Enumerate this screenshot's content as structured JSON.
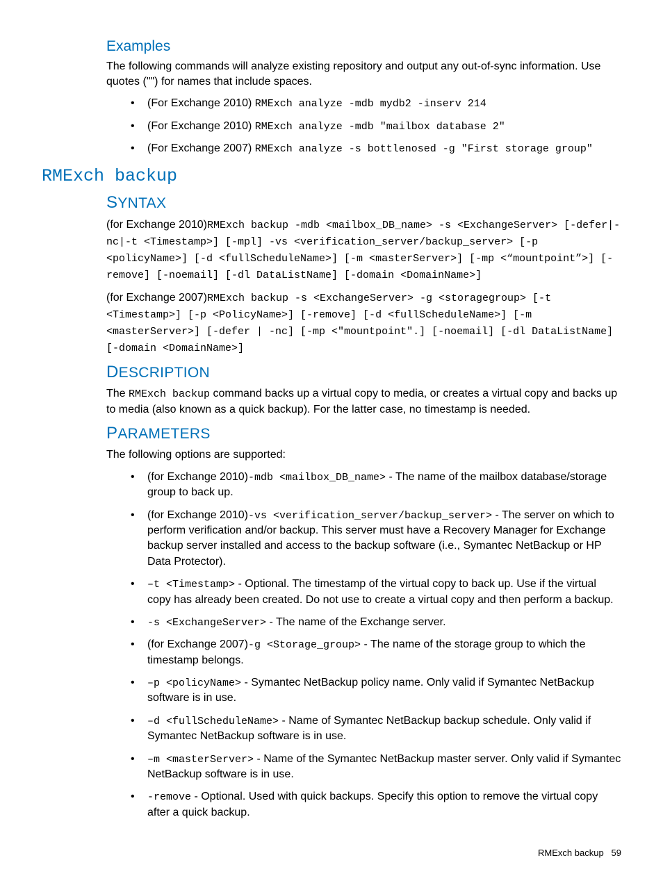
{
  "headings": {
    "examples": "Examples",
    "cmd_title": "RMExch backup",
    "syntax": "Syntax",
    "description": "Description",
    "parameters": "Parameters"
  },
  "examples": {
    "intro": "The following commands will analyze existing repository and output any out-of-sync information. Use quotes (\"\") for names that include spaces.",
    "items": [
      {
        "prefix": "(For Exchange 2010) ",
        "code": "RMExch analyze -mdb mydb2 -inserv 214"
      },
      {
        "prefix": "(For Exchange 2010) ",
        "code": "RMExch analyze -mdb \"mailbox database 2\""
      },
      {
        "prefix": "(For Exchange 2007) ",
        "code": "RMExch analyze -s bottlenosed -g \"First storage group\""
      }
    ]
  },
  "syntax": {
    "block1_prefix": "(for Exchange 2010)",
    "block1_code": "RMExch backup -mdb <mailbox_DB_name> -s <ExchangeServer> [-defer|-nc|-t <Timestamp>] [-mpl] -vs <verification_server/backup_server> [-p <policyName>] [-d <fullScheduleName>] [-m <masterServer>] [-mp <“mountpoint”>] [-remove] [-noemail] [-dl DataListName] [-domain <DomainName>]",
    "block2_prefix": "(for Exchange 2007)",
    "block2_code": "RMExch backup -s <ExchangeServer> -g <storagegroup> [-t <Timestamp>] [-p <PolicyName>] [-remove] [-d <fullScheduleName>] [-m <masterServer>] [-defer | -nc] [-mp <\"mountpoint\".] [-noemail] [-dl DataListName] [-domain <DomainName>]"
  },
  "description": {
    "pre": "The ",
    "code": "RMExch backup",
    "post": " command backs up a virtual copy to media, or creates a virtual copy and backs up to media (also known as a quick backup). For the latter case, no timestamp is needed."
  },
  "parameters": {
    "intro": "The following options are supported:",
    "items": [
      {
        "prefix": "(for Exchange 2010)",
        "code": "-mdb <mailbox_DB_name>",
        "post": " - The name of the mailbox database/storage group to back up."
      },
      {
        "prefix": "(for Exchange 2010)",
        "code": "-vs <verification_server/backup_server>",
        "post": " - The server on which to perform verification and/or backup. This server must have a Recovery Manager for Exchange backup server installed and access to the backup software (i.e., Symantec NetBackup or HP Data Protector)."
      },
      {
        "prefix": "",
        "code": "–t <Timestamp>",
        "post": " - Optional. The timestamp of the virtual copy to back up. Use if the virtual copy has already been created. Do not use to create a virtual copy and then perform a backup."
      },
      {
        "prefix": "",
        "code": "-s <ExchangeServer>",
        "post": " - The name of the Exchange server."
      },
      {
        "prefix": "(for Exchange 2007)",
        "code": "-g <Storage_group>",
        "post": " - The name of the storage group to which the timestamp belongs."
      },
      {
        "prefix": "",
        "code": "–p <policyName>",
        "post": " - Symantec NetBackup policy name. Only valid if Symantec NetBackup software is in use."
      },
      {
        "prefix": "",
        "code": "–d <fullScheduleName>",
        "post": " - Name of Symantec NetBackup backup schedule. Only valid if Symantec NetBackup software is in use."
      },
      {
        "prefix": "",
        "code": "–m <masterServer>",
        "post": " - Name of the Symantec NetBackup master server. Only valid if Symantec NetBackup software is in use."
      },
      {
        "prefix": "",
        "code": "-remove",
        "post": " - Optional. Used with quick backups. Specify this option to remove the virtual copy after a quick backup."
      }
    ]
  },
  "footer": {
    "text": "RMExch backup",
    "page": "59"
  }
}
